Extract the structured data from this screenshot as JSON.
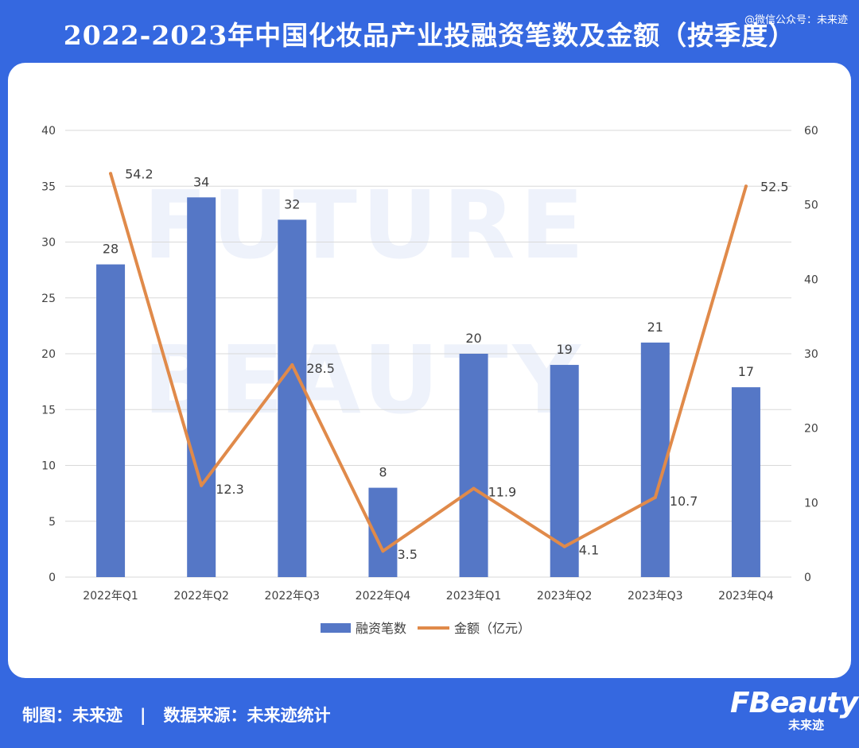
{
  "header": {
    "title": "2022-2023年中国化妆品产业投融资笔数及金额（按季度）",
    "wechat": "@微信公众号：未来迹"
  },
  "watermark": {
    "line1": "FUTURE",
    "line2": "BEAUTY"
  },
  "footer": {
    "source": "制图：未来迹   |   数据来源：未来迹统计",
    "brand_main": "FBeauty",
    "brand_sub": "未来迹"
  },
  "colors": {
    "background": "#3568e0",
    "bar": "#5577c6",
    "line": "#e08a4a",
    "grid": "#d9d9d9",
    "text": "#404040"
  },
  "chart_data": {
    "type": "bar",
    "categories": [
      "2022年Q1",
      "2022年Q2",
      "2022年Q3",
      "2022年Q4",
      "2023年Q1",
      "2023年Q2",
      "2023年Q3",
      "2023年Q4"
    ],
    "series": [
      {
        "name": "融资笔数",
        "type": "bar",
        "axis": "left",
        "values": [
          28,
          34,
          32,
          8,
          20,
          19,
          21,
          17
        ]
      },
      {
        "name": "金额（亿元）",
        "type": "line",
        "axis": "right",
        "values": [
          54.2,
          12.3,
          28.5,
          3.5,
          11.9,
          4.1,
          10.7,
          52.5
        ]
      }
    ],
    "data_labels": {
      "bars": [
        "28",
        "34",
        "32",
        "8",
        "20",
        "19",
        "21",
        "17"
      ],
      "line": [
        "54.2",
        "12.3",
        "28.5",
        "3.5",
        "11.9",
        "4.1",
        "10.7",
        "52.5"
      ]
    },
    "ylim_left": [
      0,
      40
    ],
    "yticks_left": [
      "0",
      "5",
      "10",
      "15",
      "20",
      "25",
      "30",
      "35",
      "40"
    ],
    "ylim_right": [
      0,
      60
    ],
    "yticks_right": [
      "0",
      "10",
      "20",
      "30",
      "40",
      "50",
      "60"
    ],
    "grid": true,
    "legend_position": "bottom"
  }
}
